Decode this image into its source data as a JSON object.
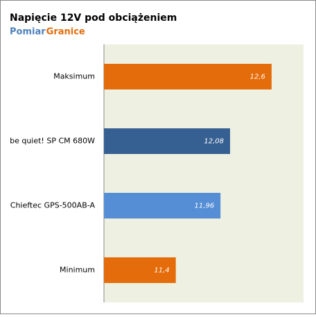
{
  "chart_data": {
    "type": "hbar",
    "title": "Napięcie 12V pod obciążeniem",
    "legend": [
      {
        "name": "Pomiar",
        "color": "#4f81bd"
      },
      {
        "name": "Granice",
        "color": "#e46c0a"
      }
    ],
    "categories": [
      "Maksimum",
      "be quiet! SP CM 680W",
      "Chieftec GPS-500AB-A",
      "Minimum"
    ],
    "values": [
      12.6,
      12.08,
      11.96,
      11.4
    ],
    "value_labels": [
      "12,6",
      "12,08",
      "11,96",
      "11,4"
    ],
    "colors": [
      "#e46c0a",
      "#376092",
      "#558ed5",
      "#e46c0a"
    ],
    "xlim": [
      10.5,
      13
    ]
  }
}
